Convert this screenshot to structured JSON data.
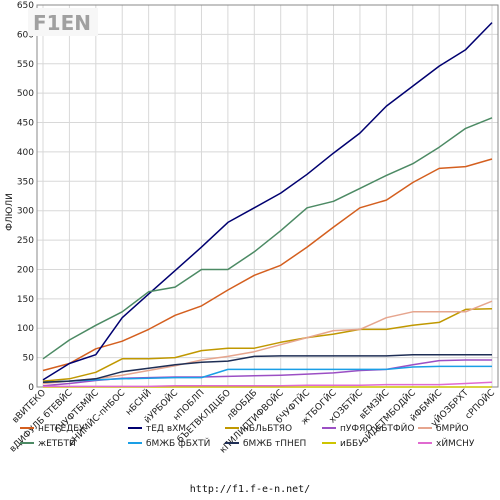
{
  "logo_text": "F1EN",
  "footer_url": "http://f1.f-e-n.net/",
  "chart_data": {
    "type": "line",
    "ylabel": "ФЛЮЛИ",
    "ylim": [
      0,
      650
    ],
    "yticks": [
      0,
      50,
      100,
      150,
      200,
      250,
      300,
      350,
      400,
      450,
      500,
      550,
      600,
      650
    ],
    "grid": true,
    "legend_position": "bottom",
    "categories": [
      "вВИТЕКО",
      "вДИФУЛБ бТЕВЙС",
      "бЧУФТБМЙС",
      "еНЙМЙС-пНБОС",
      "нБСНЙ",
      "йУРБОЙС",
      "нПОБЛП",
      "бЪЕТВКЛДЦБО",
      "лВОБДБ",
      "кПИЛИПТИФВОЙС",
      "бЧУФТЙС",
      "жТБОГЙС",
      "хОЗБТЙС",
      "вЕМЗЙС",
      "оЙДЕТМБОДЙС",
      "йФБМЙС",
      "уЙОЗБРХТ",
      "сРПОЙС"
    ],
    "series": [
      {
        "name": "нЕТГЕДЕУ",
        "color": "#d45f1f",
        "values": [
          28,
          40,
          65,
          78,
          98,
          122,
          138,
          165,
          190,
          207,
          238,
          272,
          305,
          318,
          348,
          372,
          375,
          388
        ]
      },
      {
        "name": "тЕД вХМ",
        "color": "#000070",
        "values": [
          12,
          40,
          55,
          118,
          158,
          198,
          238,
          280,
          305,
          330,
          362,
          398,
          432,
          478,
          512,
          546,
          574,
          620
        ]
      },
      {
        "name": "нБЛьБТЯО",
        "color": "#c09800",
        "values": [
          10,
          14,
          25,
          48,
          48,
          50,
          62,
          66,
          66,
          76,
          84,
          90,
          98,
          98,
          105,
          110,
          132,
          133
        ]
      },
      {
        "name": "пУФЯО нБТФЙО",
        "color": "#9b4fc4",
        "values": [
          2,
          6,
          11,
          15,
          16,
          17,
          17,
          18,
          19,
          20,
          22,
          24,
          28,
          30,
          38,
          45,
          46,
          46
        ]
      },
      {
        "name": "бМРЙО",
        "color": "#e6a58e",
        "values": [
          6,
          10,
          14,
          20,
          28,
          36,
          46,
          52,
          60,
          72,
          84,
          96,
          98,
          118,
          128,
          128,
          128,
          146
        ]
      },
      {
        "name": "жЕТБТЙ",
        "color": "#4c8a64",
        "values": [
          48,
          80,
          105,
          128,
          162,
          170,
          200,
          200,
          230,
          266,
          305,
          316,
          338,
          360,
          380,
          408,
          440,
          458
        ]
      },
      {
        "name": "бМЖБ фБХТЙ",
        "color": "#1a9fe6",
        "values": [
          8,
          10,
          12,
          14,
          15,
          16,
          16,
          30,
          30,
          30,
          30,
          30,
          30,
          30,
          34,
          35,
          35,
          35
        ]
      },
      {
        "name": "бМЖБ тПНЕП",
        "color": "#1e2e55",
        "values": [
          8,
          10,
          14,
          26,
          32,
          38,
          42,
          44,
          52,
          53,
          53,
          53,
          53,
          53,
          55,
          55,
          55,
          55
        ]
      },
      {
        "name": "иББУ",
        "color": "#cdc400",
        "values": [
          0,
          0,
          0,
          0,
          0,
          0,
          0,
          0,
          0,
          0,
          0,
          0,
          0,
          0,
          0,
          0,
          0,
          0
        ]
      },
      {
        "name": "хЙМСНУ",
        "color": "#e06ad0",
        "values": [
          1,
          1,
          1,
          1,
          1,
          2,
          2,
          2,
          2,
          2,
          3,
          3,
          3,
          4,
          4,
          4,
          6,
          8
        ]
      }
    ]
  }
}
